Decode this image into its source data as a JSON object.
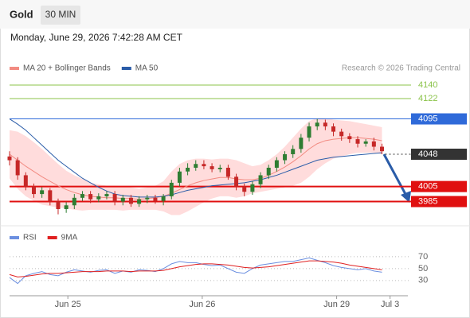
{
  "header": {
    "symbol": "Gold",
    "interval": "30 MIN",
    "datetime": "Monday, June 29, 2026 7:42:28 AM CET",
    "source": "Research © 2026 Trading Central"
  },
  "chart_data": [
    {
      "type": "candlestick",
      "up_color": "#2e7d32",
      "down_color": "#c62828",
      "xlim": [
        0,
        49
      ],
      "ylim": [
        3957,
        4158
      ],
      "open": [
        4045,
        4040,
        4020,
        4005,
        3995,
        4000,
        3985,
        3975,
        3980,
        3990,
        3995,
        3988,
        3992,
        3995,
        3985,
        3990,
        3982,
        3988,
        3990,
        3986,
        3992,
        4010,
        4025,
        4030,
        4035,
        4032,
        4028,
        4030,
        4018,
        4005,
        3998,
        4008,
        4020,
        4030,
        4040,
        4048,
        4055,
        4070,
        4085,
        4090,
        4085,
        4078,
        4072,
        4068,
        4062,
        4065,
        4058
      ],
      "high": [
        4052,
        4044,
        4024,
        4009,
        4004,
        4003,
        3989,
        3984,
        3995,
        3999,
        3999,
        3996,
        3999,
        3999,
        3994,
        3994,
        3992,
        3994,
        3994,
        3995,
        4014,
        4030,
        4036,
        4040,
        4040,
        4036,
        4034,
        4034,
        4022,
        4009,
        4012,
        4024,
        4034,
        4044,
        4052,
        4060,
        4075,
        4090,
        4095,
        4094,
        4089,
        4082,
        4076,
        4072,
        4068,
        4070,
        4062
      ],
      "low": [
        4033,
        4014,
        4000,
        3990,
        3990,
        3980,
        3968,
        3970,
        3975,
        3986,
        3983,
        3984,
        3988,
        3980,
        3980,
        3978,
        3978,
        3983,
        3982,
        3980,
        3988,
        4005,
        4020,
        4026,
        4028,
        4024,
        4024,
        4014,
        4000,
        3992,
        3994,
        4003,
        4015,
        4025,
        4035,
        4043,
        4050,
        4065,
        4080,
        4080,
        4072,
        4066,
        4063,
        4057,
        4058,
        4053,
        4048
      ],
      "close": [
        4040,
        4020,
        4005,
        3995,
        4000,
        3985,
        3975,
        3980,
        3990,
        3995,
        3988,
        3992,
        3995,
        3985,
        3990,
        3982,
        3988,
        3990,
        3986,
        3992,
        4010,
        4025,
        4030,
        4035,
        4032,
        4028,
        4030,
        4018,
        4005,
        3998,
        4008,
        4020,
        4030,
        4040,
        4048,
        4055,
        4070,
        4085,
        4090,
        4085,
        4078,
        4072,
        4068,
        4062,
        4065,
        4058,
        4052
      ],
      "overlays": [
        {
          "name": "MA 20 + Bollinger Bands",
          "color": "#f28b82",
          "band_color": "#ffdcdc",
          "values": [
            4048,
            4040,
            4032,
            4025,
            4018,
            4012,
            4006,
            4001,
            3997,
            3994,
            3992,
            3991,
            3990,
            3990,
            3989,
            3989,
            3988,
            3989,
            3990,
            3992,
            3996,
            4001,
            4006,
            4010,
            4013,
            4015,
            4017,
            4017,
            4015,
            4014,
            4014,
            4016,
            4020,
            4025,
            4031,
            4038,
            4046,
            4055,
            4062,
            4066,
            4068,
            4069,
            4070,
            4070,
            4069,
            4068,
            4066
          ],
          "upper": [
            4080,
            4078,
            4072,
            4064,
            4055,
            4045,
            4035,
            4026,
            4020,
            4015,
            4010,
            4008,
            4006,
            4006,
            4005,
            4004,
            4002,
            4004,
            4006,
            4012,
            4025,
            4035,
            4040,
            4042,
            4042,
            4041,
            4042,
            4042,
            4040,
            4036,
            4032,
            4034,
            4040,
            4048,
            4058,
            4070,
            4082,
            4092,
            4096,
            4096,
            4094,
            4093,
            4092,
            4090,
            4088,
            4086,
            4084
          ],
          "lower": [
            4016,
            4002,
            3992,
            3986,
            3981,
            3979,
            3977,
            3976,
            3974,
            3973,
            3974,
            3974,
            3974,
            3974,
            3973,
            3974,
            3974,
            3974,
            3974,
            3972,
            3967,
            3967,
            3972,
            3978,
            3984,
            3989,
            3992,
            3992,
            3990,
            3992,
            3996,
            3998,
            4000,
            4002,
            4004,
            4006,
            4010,
            4018,
            4028,
            4036,
            4042,
            4045,
            4048,
            4050,
            4050,
            4050,
            4048
          ]
        },
        {
          "name": "MA 50",
          "color": "#2a5ca8",
          "values": [
            4095,
            4088,
            4080,
            4070,
            4060,
            4050,
            4040,
            4032,
            4024,
            4016,
            4010,
            4004,
            3999,
            3995,
            3993,
            3992,
            3991,
            3991,
            3991,
            3992,
            3994,
            3997,
            4000,
            4002,
            4004,
            4006,
            4007,
            4008,
            4009,
            4010,
            4012,
            4014,
            4017,
            4020,
            4024,
            4028,
            4032,
            4036,
            4040,
            4042,
            4044,
            4045,
            4046,
            4047,
            4048,
            4049,
            4050
          ]
        }
      ],
      "levels": [
        {
          "value": 4140,
          "color": "#8bc34a",
          "tag": false,
          "width": 1,
          "dash": false
        },
        {
          "value": 4122,
          "color": "#8bc34a",
          "tag": false,
          "width": 1,
          "dash": false
        },
        {
          "value": 4095,
          "color": "#2f6ad9",
          "tag": true,
          "width": 1,
          "dash": false
        },
        {
          "value": 4048,
          "color": "#333333",
          "tag": true,
          "width": 1,
          "dash": true
        },
        {
          "value": 4005,
          "color": "#e01010",
          "tag": true,
          "width": 2,
          "dash": false
        },
        {
          "value": 3985,
          "color": "#e01010",
          "tag": true,
          "width": 2,
          "dash": false
        }
      ]
    },
    {
      "type": "line",
      "xlim": [
        0,
        49
      ],
      "ylim": [
        7,
        94
      ],
      "yticks": [
        30,
        50,
        70
      ],
      "xticks": [
        {
          "value": 7.2,
          "label": "Jun 25"
        },
        {
          "value": 23.8,
          "label": "Jun 26"
        },
        {
          "value": 40.4,
          "label": "Jun 29"
        },
        {
          "value": 47,
          "label": "Jul 3"
        }
      ],
      "series": [
        {
          "name": "RSI",
          "color": "#6b8fe0",
          "values": [
            35,
            25,
            38,
            42,
            45,
            40,
            38,
            44,
            48,
            46,
            44,
            47,
            48,
            42,
            46,
            44,
            48,
            47,
            45,
            50,
            58,
            62,
            60,
            60,
            57,
            55,
            56,
            50,
            44,
            42,
            50,
            56,
            58,
            60,
            62,
            62,
            65,
            68,
            64,
            60,
            55,
            52,
            50,
            48,
            50,
            46,
            44
          ]
        },
        {
          "name": "9MA",
          "color": "#e02020",
          "values": [
            40,
            36,
            37,
            39,
            41,
            42,
            42,
            43,
            44,
            45,
            45,
            45,
            46,
            46,
            46,
            45,
            46,
            46,
            46,
            47,
            50,
            53,
            55,
            57,
            58,
            58,
            57,
            56,
            54,
            52,
            51,
            52,
            53,
            55,
            57,
            59,
            61,
            63,
            63,
            62,
            61,
            59,
            56,
            54,
            52,
            50,
            48
          ]
        }
      ]
    }
  ]
}
